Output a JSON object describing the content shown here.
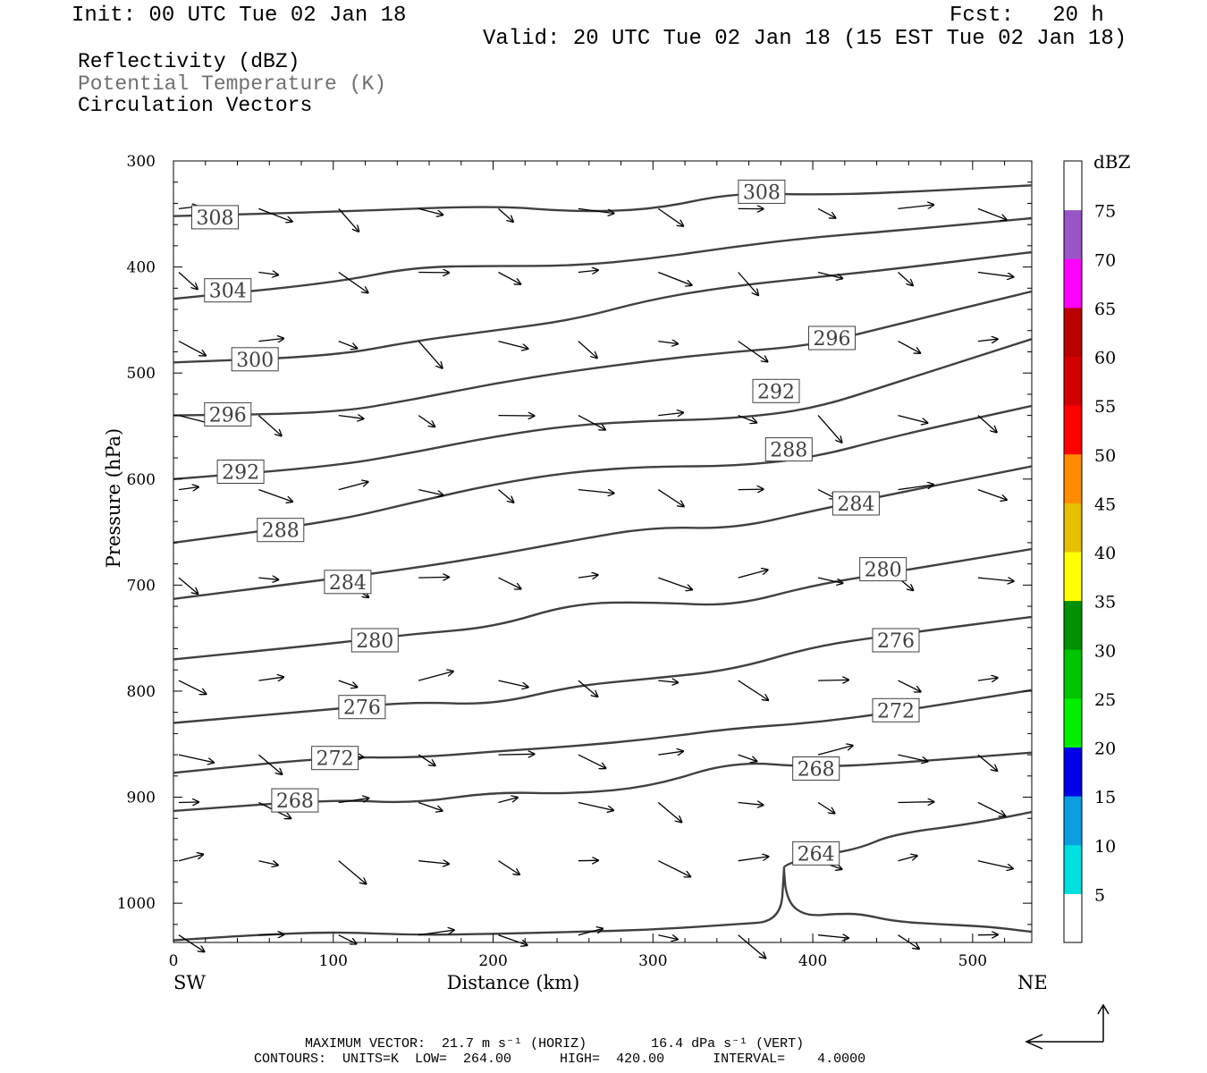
{
  "header": {
    "init": "Init: 00 UTC Tue 02 Jan 18",
    "fcst": "Fcst:   20 h",
    "valid": "Valid: 20 UTC Tue 02 Jan 18 (15 EST Tue 02 Jan 18)"
  },
  "fields": [
    {
      "label": "Reflectivity (dBZ)",
      "color": "#000000"
    },
    {
      "label": "Potential Temperature (K)",
      "color": "#707070"
    },
    {
      "label": "Circulation Vectors",
      "color": "#000000"
    }
  ],
  "chart_data": {
    "type": "cross-section contour",
    "xlabel": "Distance (km)",
    "ylabel": "Pressure (hPa)",
    "xlim": [
      0,
      537
    ],
    "ylim": [
      1037,
      300
    ],
    "x_ticks": [
      "0",
      "100",
      "200",
      "300",
      "400",
      "500"
    ],
    "y_ticks": [
      "300",
      "400",
      "500",
      "600",
      "700",
      "800",
      "900",
      "1000"
    ],
    "x_end_labels": {
      "left": "SW",
      "right": "NE"
    },
    "theta_contours": [
      {
        "value": 308,
        "label": "308",
        "x": [
          0,
          100,
          200,
          250,
          300,
          350,
          400,
          450,
          537
        ],
        "p": [
          352,
          348,
          342,
          348,
          346,
          330,
          332,
          330,
          323
        ]
      },
      {
        "value": 304,
        "label": "304",
        "x": [
          0,
          100,
          150,
          200,
          250,
          300,
          350,
          400,
          450,
          537
        ],
        "p": [
          430,
          415,
          400,
          399,
          399,
          392,
          381,
          372,
          366,
          354
        ]
      },
      {
        "value": 300,
        "label": "300",
        "x": [
          0,
          100,
          150,
          200,
          250,
          300,
          350,
          400,
          450,
          537
        ],
        "p": [
          490,
          484,
          470,
          460,
          450,
          430,
          418,
          410,
          402,
          386
        ]
      },
      {
        "value": 296,
        "label": "296",
        "x": [
          0,
          100,
          150,
          200,
          250,
          300,
          350,
          400,
          450,
          537
        ],
        "p": [
          540,
          538,
          525,
          510,
          498,
          488,
          480,
          474,
          455,
          423
        ]
      },
      {
        "value": 292,
        "label": "292",
        "x": [
          0,
          100,
          150,
          200,
          250,
          300,
          350,
          400,
          450,
          537
        ],
        "p": [
          600,
          588,
          575,
          560,
          549,
          545,
          543,
          534,
          510,
          468
        ]
      },
      {
        "value": 288,
        "label": "288",
        "x": [
          0,
          100,
          150,
          200,
          250,
          300,
          350,
          400,
          450,
          537
        ],
        "p": [
          660,
          640,
          622,
          605,
          593,
          588,
          588,
          580,
          560,
          531
        ]
      },
      {
        "value": 284,
        "label": "284",
        "x": [
          0,
          100,
          150,
          200,
          250,
          300,
          350,
          400,
          450,
          537
        ],
        "p": [
          713,
          694,
          684,
          672,
          658,
          645,
          647,
          630,
          614,
          588
        ]
      },
      {
        "value": 280,
        "label": "280",
        "x": [
          0,
          100,
          150,
          200,
          250,
          300,
          350,
          400,
          450,
          537
        ],
        "p": [
          770,
          755,
          746,
          740,
          717,
          716,
          720,
          700,
          688,
          666
        ]
      },
      {
        "value": 276,
        "label": "276",
        "x": [
          0,
          100,
          150,
          200,
          250,
          300,
          350,
          400,
          450,
          537
        ],
        "p": [
          830,
          817,
          810,
          813,
          795,
          788,
          780,
          758,
          747,
          730
        ]
      },
      {
        "value": 272,
        "label": "272",
        "x": [
          0,
          100,
          150,
          200,
          250,
          300,
          350,
          400,
          450,
          537
        ],
        "p": [
          877,
          862,
          863,
          857,
          852,
          845,
          835,
          830,
          820,
          799
        ]
      },
      {
        "value": 268,
        "label": "268",
        "x": [
          0,
          100,
          150,
          200,
          250,
          300,
          350,
          400,
          450,
          537
        ],
        "p": [
          913,
          902,
          906,
          895,
          897,
          890,
          866,
          872,
          868,
          858
        ]
      },
      {
        "value": 264,
        "label": "264",
        "x": [
          537,
          500,
          450,
          430,
          405,
          390,
          382,
          382
        ],
        "p": [
          914,
          925,
          935,
          948,
          955,
          960,
          965,
          968
        ]
      },
      {
        "value": 264,
        "label": "",
        "x": [
          382,
          383,
          388,
          398,
          415,
          430,
          450,
          480,
          510,
          537
        ],
        "p": [
          968,
          990,
          1005,
          1012,
          1010,
          1010,
          1017,
          1020,
          1022,
          1027
        ]
      },
      {
        "value": 264,
        "label": "",
        "x": [
          0,
          50,
          100,
          150,
          200,
          250,
          300,
          350,
          380,
          382
        ],
        "p": [
          1035,
          1030,
          1027,
          1030,
          1029,
          1027,
          1025,
          1020,
          1017,
          968
        ]
      }
    ],
    "labels_on_plot": [
      {
        "text": "308",
        "x": 26,
        "p": 353
      },
      {
        "text": "308",
        "x": 368,
        "p": 329
      },
      {
        "text": "304",
        "x": 34,
        "p": 422
      },
      {
        "text": "300",
        "x": 51,
        "p": 487
      },
      {
        "text": "296",
        "x": 412,
        "p": 467
      },
      {
        "text": "296",
        "x": 34,
        "p": 539
      },
      {
        "text": "292",
        "x": 377,
        "p": 517
      },
      {
        "text": "292",
        "x": 42,
        "p": 593
      },
      {
        "text": "288",
        "x": 385,
        "p": 572
      },
      {
        "text": "288",
        "x": 67,
        "p": 648
      },
      {
        "text": "284",
        "x": 427,
        "p": 623
      },
      {
        "text": "284",
        "x": 109,
        "p": 697
      },
      {
        "text": "280",
        "x": 444,
        "p": 685
      },
      {
        "text": "280",
        "x": 126,
        "p": 752
      },
      {
        "text": "276",
        "x": 452,
        "p": 752
      },
      {
        "text": "276",
        "x": 118,
        "p": 815
      },
      {
        "text": "272",
        "x": 452,
        "p": 818
      },
      {
        "text": "272",
        "x": 101,
        "p": 863
      },
      {
        "text": "268",
        "x": 402,
        "p": 873
      },
      {
        "text": "268",
        "x": 76,
        "p": 903
      },
      {
        "text": "264",
        "x": 402,
        "p": 953
      }
    ],
    "vectors_note": "circulation vectors drawn on a regular distance/pressure grid",
    "colorbar": {
      "title": "dBZ",
      "ticks": [
        "5",
        "10",
        "15",
        "20",
        "25",
        "30",
        "35",
        "40",
        "45",
        "50",
        "55",
        "60",
        "65",
        "70",
        "75"
      ],
      "colors": [
        "#ffffff",
        "#00e0e0",
        "#0b9ee0",
        "#0000e8",
        "#00f000",
        "#00c400",
        "#009000",
        "#ffff00",
        "#e6c000",
        "#ff8c00",
        "#ff0000",
        "#d40000",
        "#bb0000",
        "#ff00ff",
        "#9a55c8",
        "#ffffff"
      ]
    }
  },
  "footer": {
    "max_vector": "MAXIMUM VECTOR:  21.7 m s⁻¹ (HORIZ)        16.4 dPa s⁻¹ (VERT)",
    "contours": "CONTOURS:  UNITS=K  LOW=  264.00      HIGH=  420.00      INTERVAL=    4.0000"
  }
}
